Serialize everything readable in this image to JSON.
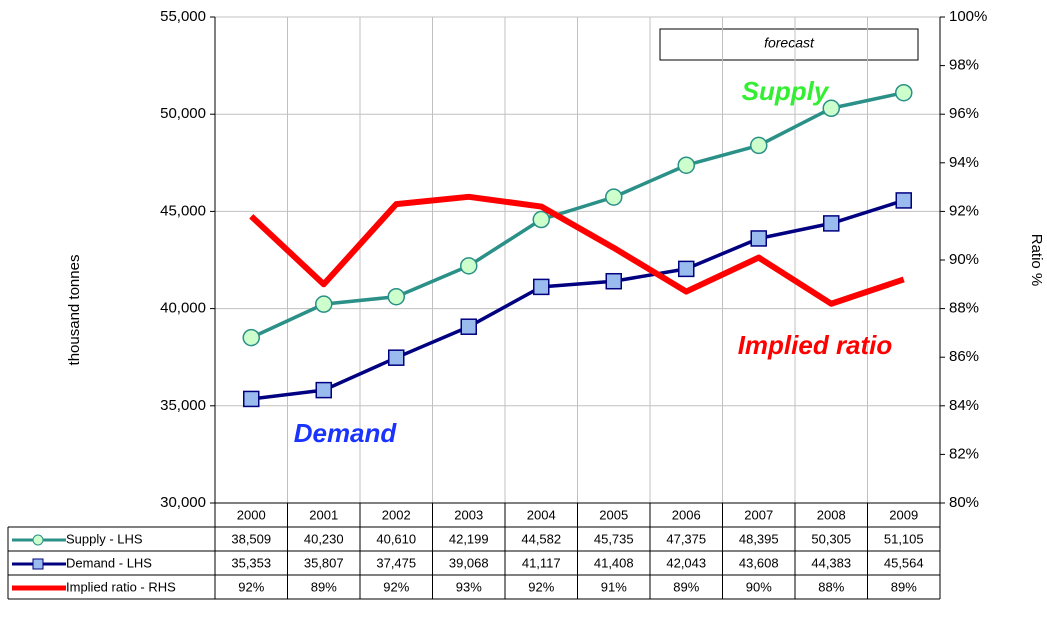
{
  "chart_data": {
    "type": "line",
    "axis_label_left": "thousand tonnes",
    "axis_label_right": "Ratio %",
    "annotations": [
      "forecast",
      "Supply",
      "Implied ratio",
      "Demand"
    ],
    "categories": [
      "2000",
      "2001",
      "2002",
      "2003",
      "2004",
      "2005",
      "2006",
      "2007",
      "2008",
      "2009"
    ],
    "series": [
      {
        "name": "Supply - LHS",
        "color": "#2a9088",
        "marker": "circle",
        "marker_color": "#ccffcc",
        "axis": "y",
        "values": [
          38509,
          40230,
          40610,
          42199,
          44582,
          45735,
          47375,
          48395,
          50305,
          51105
        ],
        "value_labels": [
          "38,509",
          "40,230",
          "40,610",
          "42,199",
          "44,582",
          "45,735",
          "47,375",
          "48,395",
          "50,305",
          "51,105"
        ]
      },
      {
        "name": "Demand - LHS",
        "color": "#000080",
        "marker": "square",
        "marker_color": "#99bbee",
        "axis": "y",
        "values": [
          35353,
          35807,
          37475,
          39068,
          41117,
          41408,
          42043,
          43608,
          44383,
          45564
        ],
        "value_labels": [
          "35,353",
          "35,807",
          "37,475",
          "39,068",
          "41,117",
          "41,408",
          "42,043",
          "43,608",
          "44,383",
          "45,564"
        ]
      },
      {
        "name": "Implied ratio - RHS",
        "color": "#ff0000",
        "marker": "none",
        "axis": "y2",
        "values": [
          91.8,
          89.0,
          92.3,
          92.6,
          92.2,
          90.5,
          88.7,
          90.1,
          88.2,
          89.2
        ],
        "value_labels": [
          "92%",
          "89%",
          "92%",
          "93%",
          "92%",
          "91%",
          "89%",
          "90%",
          "88%",
          "89%"
        ]
      }
    ],
    "ylim": [
      30000,
      55000
    ],
    "yticks": [
      {
        "value": 30000,
        "label": "30,000"
      },
      {
        "value": 35000,
        "label": "35,000"
      },
      {
        "value": 40000,
        "label": "40,000"
      },
      {
        "value": 45000,
        "label": "45,000"
      },
      {
        "value": 50000,
        "label": "50,000"
      },
      {
        "value": 55000,
        "label": "55,000"
      }
    ],
    "y2lim": [
      80,
      100
    ],
    "y2ticks": [
      {
        "value": 80,
        "label": "80%"
      },
      {
        "value": 82,
        "label": "82%"
      },
      {
        "value": 84,
        "label": "84%"
      },
      {
        "value": 86,
        "label": "86%"
      },
      {
        "value": 88,
        "label": "88%"
      },
      {
        "value": 90,
        "label": "90%"
      },
      {
        "value": 92,
        "label": "92%"
      },
      {
        "value": 94,
        "label": "94%"
      },
      {
        "value": 96,
        "label": "96%"
      },
      {
        "value": 98,
        "label": "98%"
      },
      {
        "value": 100,
        "label": "100%"
      }
    ],
    "grid": true
  }
}
